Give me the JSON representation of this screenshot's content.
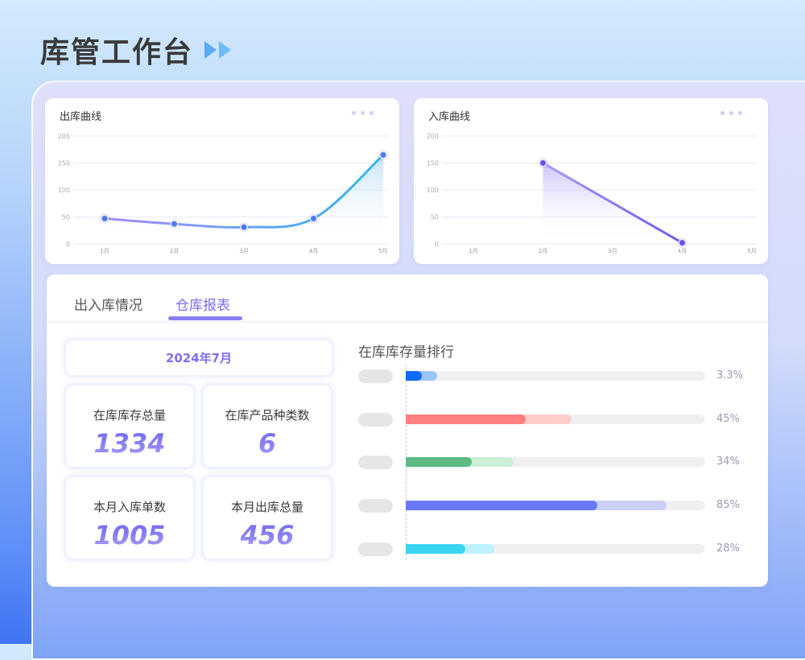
{
  "page_title": "库管工作台",
  "charts": [
    {
      "title": "出库曲线",
      "type": "line",
      "smooth": true,
      "categories": [
        "1月",
        "2月",
        "3月",
        "4月",
        "5月"
      ],
      "values": [
        47,
        37,
        31,
        47,
        165
      ],
      "yticks": [
        0,
        50,
        100,
        150,
        200
      ],
      "ylim": [
        0,
        200
      ],
      "grid": true,
      "colors": [
        "#a48cf6",
        "#2fb7f0"
      ]
    },
    {
      "title": "入库曲线",
      "type": "line",
      "smooth": false,
      "categories": [
        "1月",
        "2月",
        "3月",
        "4月",
        "5月"
      ],
      "values": [
        null,
        150,
        null,
        2,
        null
      ],
      "yticks": [
        0,
        50,
        100,
        150,
        200
      ],
      "ylim": [
        0,
        200
      ],
      "grid": true,
      "colors": [
        "#a99af8",
        "#7159f0"
      ]
    }
  ],
  "tabs": [
    {
      "label": "出入库情况",
      "active": false
    },
    {
      "label": "仓库报表",
      "active": true
    }
  ],
  "report": {
    "date": "2024年7月",
    "stats": [
      {
        "label": "在库库存总量",
        "value": "1334"
      },
      {
        "label": "在库产品种类数",
        "value": "6"
      },
      {
        "label": "本月入库单数",
        "value": "1005"
      },
      {
        "label": "本月出库总量",
        "value": "456"
      }
    ],
    "ranking_title": "在库库存量排行",
    "ranking": [
      {
        "percent": "3.3%",
        "primary": 0.055,
        "secondary": 0.105,
        "color": "#0d6bfd",
        "light": "#9ac3fb"
      },
      {
        "percent": "45%",
        "primary": 0.4,
        "secondary": 0.555,
        "color": "#ff7f7d",
        "light": "#ffcdc9"
      },
      {
        "percent": "34%",
        "primary": 0.22,
        "secondary": 0.36,
        "color": "#5cbb83",
        "light": "#ccefd7"
      },
      {
        "percent": "85%",
        "primary": 0.64,
        "secondary": 0.87,
        "color": "#6878fb",
        "light": "#cbcff5"
      },
      {
        "percent": "28%",
        "primary": 0.2,
        "secondary": 0.295,
        "color": "#3ad4f3",
        "light": "#bef1fb"
      }
    ]
  }
}
